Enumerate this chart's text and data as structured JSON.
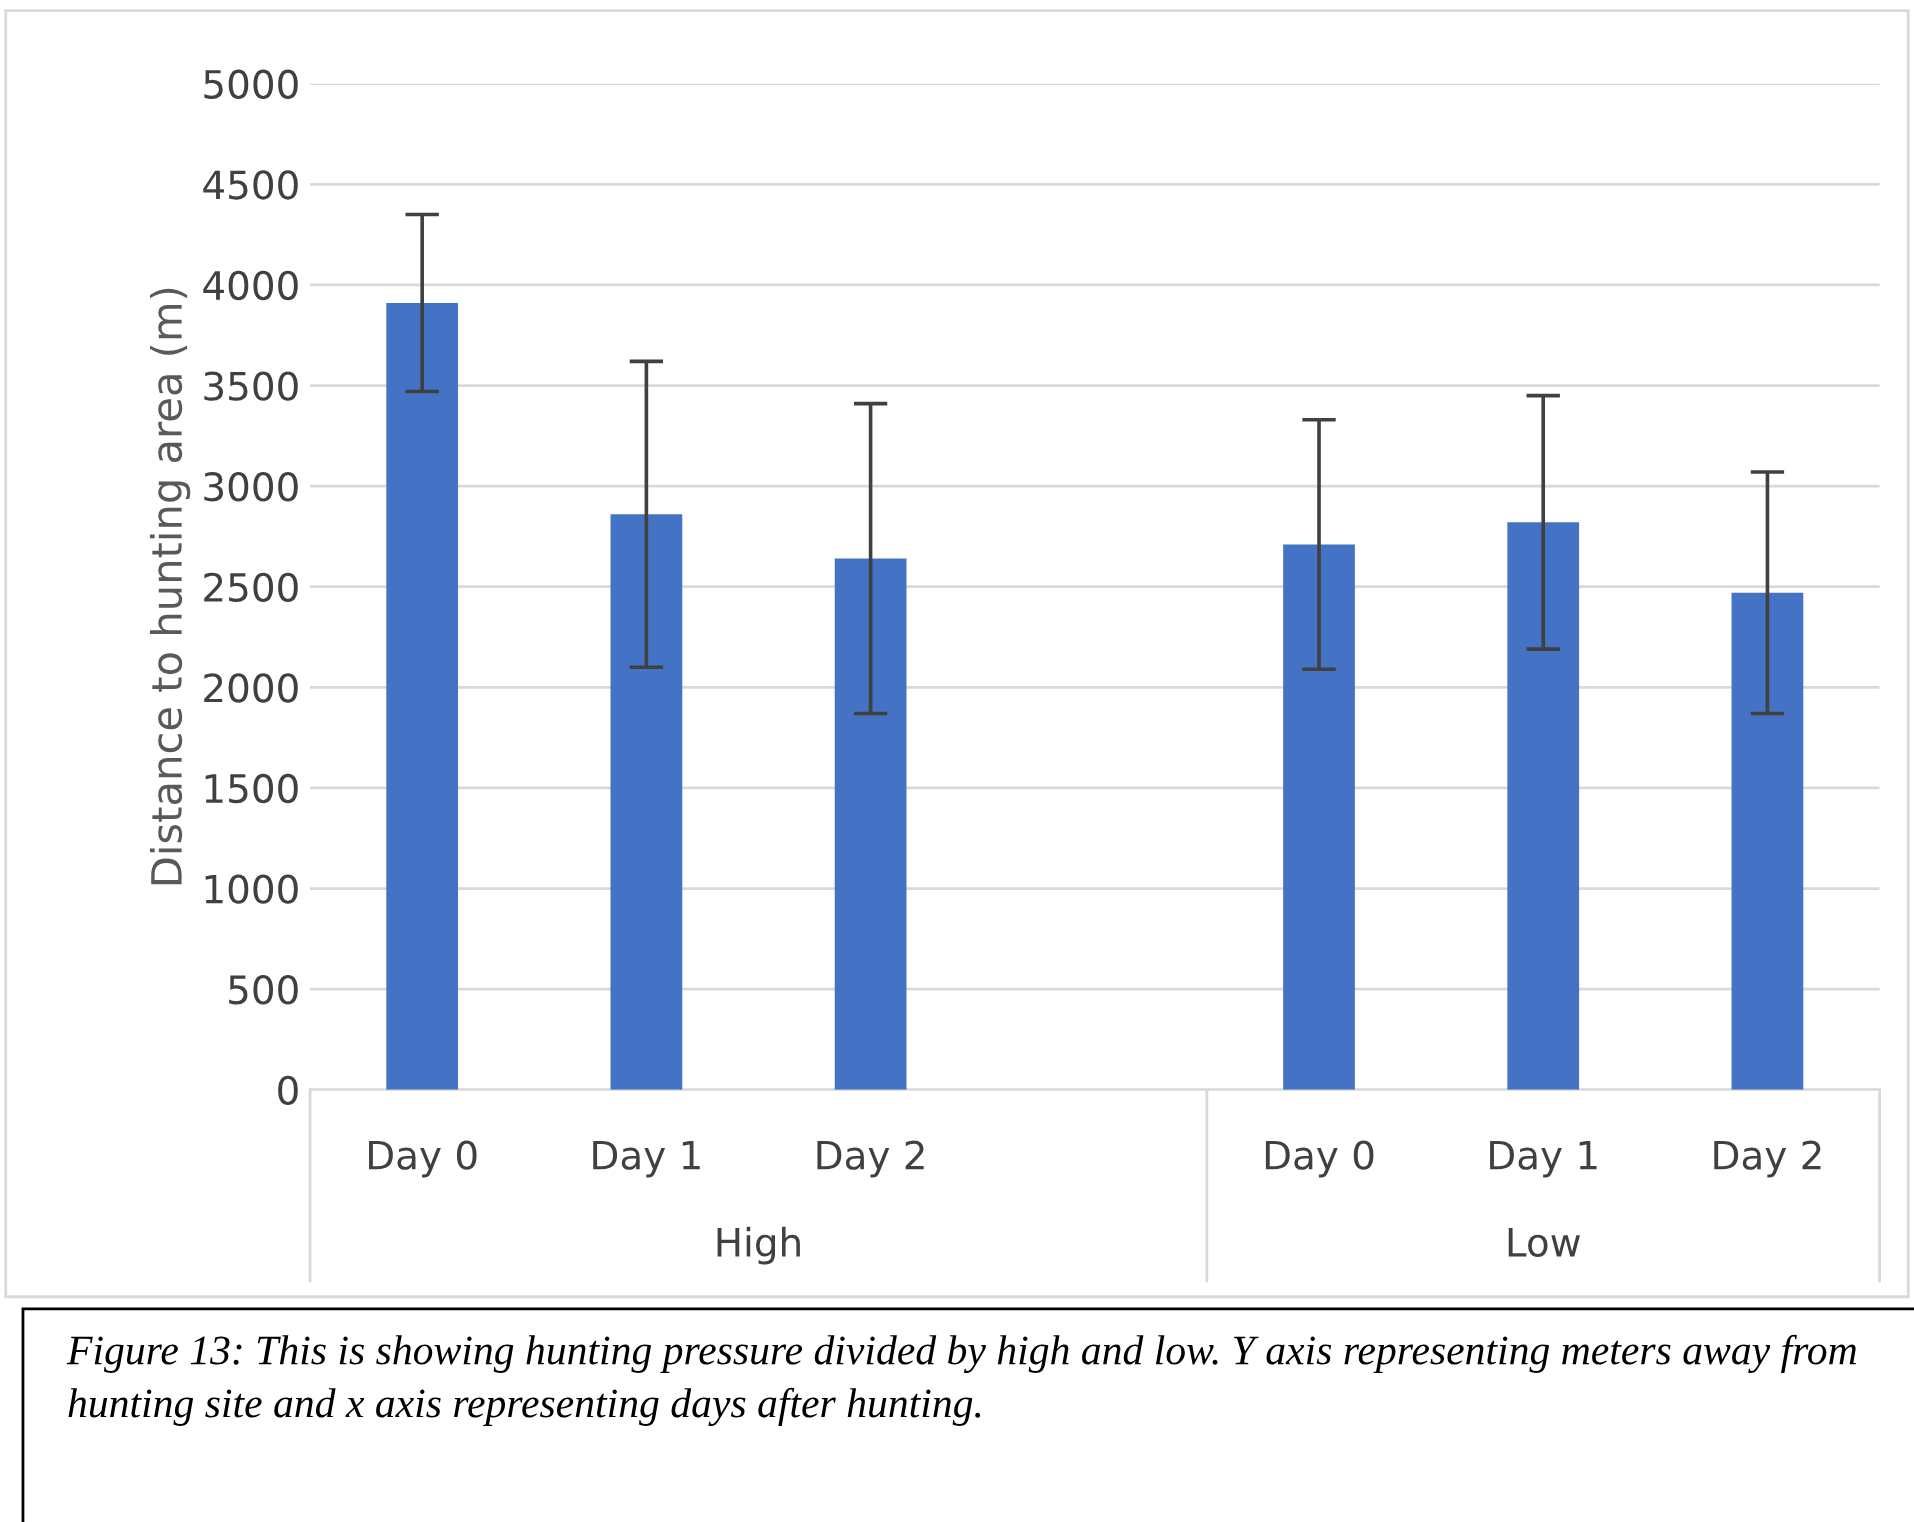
{
  "chart_data": {
    "type": "bar",
    "ylabel": "Distance to hunting area (m)",
    "categories": [
      "Day 0",
      "Day 1",
      "Day 2",
      null,
      "Day 0",
      "Day 1",
      "Day 2"
    ],
    "values": [
      3910,
      2860,
      2640,
      null,
      2710,
      2820,
      2470
    ],
    "errors": [
      440,
      760,
      770,
      null,
      620,
      630,
      600
    ],
    "color": "#4472c4",
    "ylim": [
      0,
      5000
    ],
    "yticks": [
      0,
      500,
      1000,
      1500,
      2000,
      2500,
      3000,
      3500,
      4000,
      4500,
      5000
    ],
    "grid": "y",
    "annotations": [
      "High",
      "Low",
      "Figure 13: This is showing hunting pressure divided by high and low. Y axis representing meters away from hunting site and x axis representing days after hunting."
    ]
  }
}
